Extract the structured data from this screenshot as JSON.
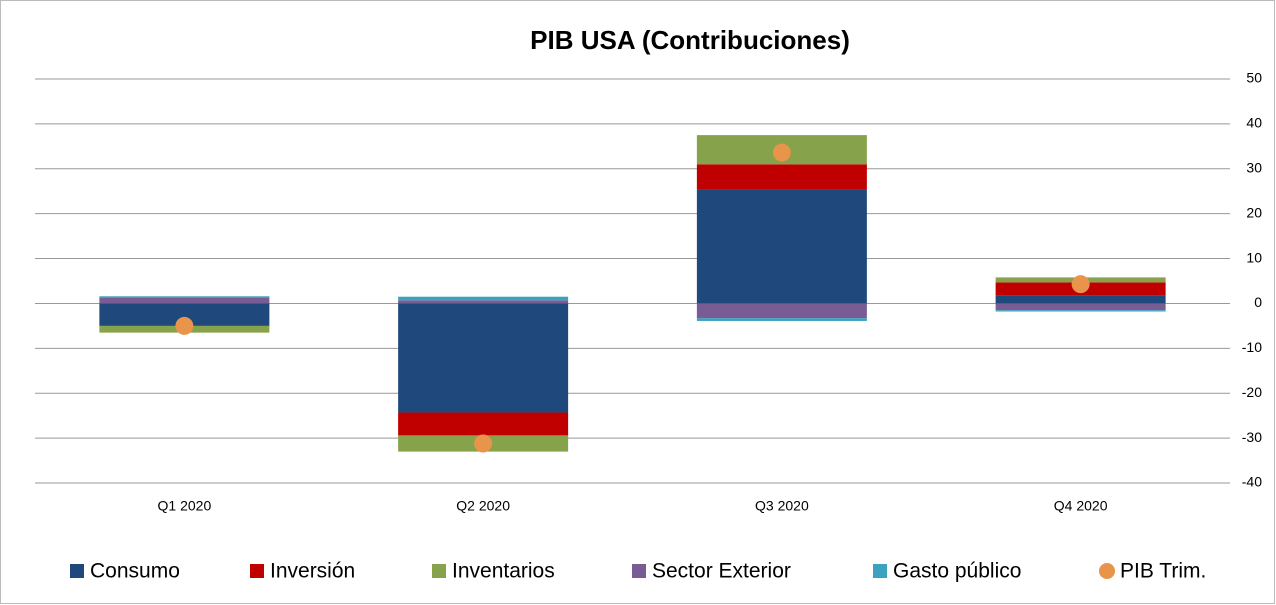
{
  "chart_data": {
    "type": "bar",
    "stacked": true,
    "title": "PIB USA (Contribuciones)",
    "categories": [
      "Q1 2020",
      "Q2 2020",
      "Q3 2020",
      "Q4 2020"
    ],
    "series": [
      {
        "name": "Consumo",
        "color": "#1f497d",
        "values": [
          -4.8,
          -24.3,
          25.4,
          1.8
        ]
      },
      {
        "name": "Inversión",
        "color": "#c00000",
        "values": [
          -0.2,
          -5.1,
          5.6,
          2.9
        ]
      },
      {
        "name": "Inventarios",
        "color": "#86a24a",
        "values": [
          -1.5,
          -3.6,
          6.5,
          1.1
        ]
      },
      {
        "name": "Sector Exterior",
        "color": "#7a5c94",
        "values": [
          1.3,
          0.7,
          -3.3,
          -1.5
        ]
      },
      {
        "name": "Gasto público",
        "color": "#3ba3bf",
        "values": [
          0.3,
          0.8,
          -0.6,
          -0.3
        ]
      },
      {
        "name": "PIB Trim.",
        "color": "#e8944a",
        "type": "scatter",
        "values": [
          -5.0,
          -31.2,
          33.6,
          4.3
        ]
      }
    ],
    "ylim": [
      -40,
      50
    ],
    "yticks": [
      -40,
      -30,
      -20,
      -10,
      0,
      10,
      20,
      30,
      40,
      50
    ],
    "grid": true
  }
}
